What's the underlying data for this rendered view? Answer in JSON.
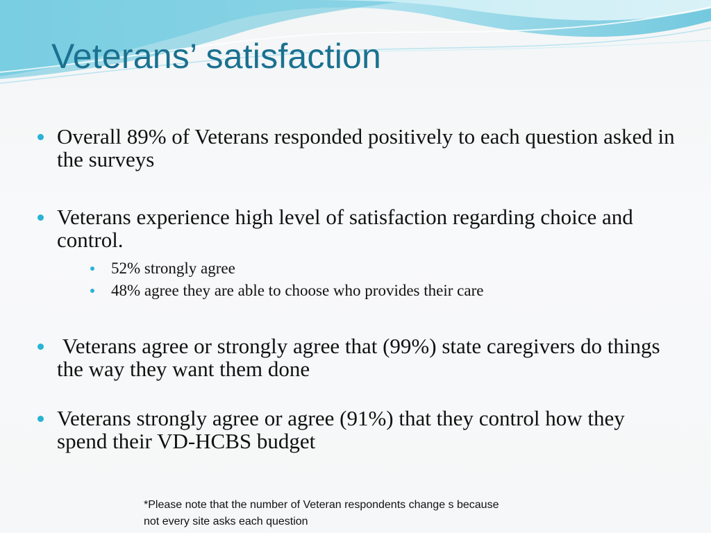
{
  "slide": {
    "title": "Veterans’ satisfaction",
    "bullets": [
      {
        "text": "Overall 89% of Veterans responded positively to each question asked in the surveys"
      },
      {
        "text": "Veterans experience high level of satisfaction regarding choice and control.",
        "subitems": [
          "52% strongly agree",
          "48% agree they are able to choose who provides their care"
        ]
      },
      {
        "text": " Veterans agree or strongly agree that (99%) state caregivers do things the way they want them done"
      },
      {
        "text": "Veterans strongly agree or agree (91%) that they control how they spend their VD-HCBS budget"
      }
    ],
    "footnote_line1": "*Please note that the number of Veteran respondents change s because",
    "footnote_line2": "not every site asks each question"
  },
  "colors": {
    "title": "#1a7190",
    "bullet": "#29b3d6",
    "wave_dark": "#5fc3da",
    "wave_light": "#bfe8f2"
  }
}
